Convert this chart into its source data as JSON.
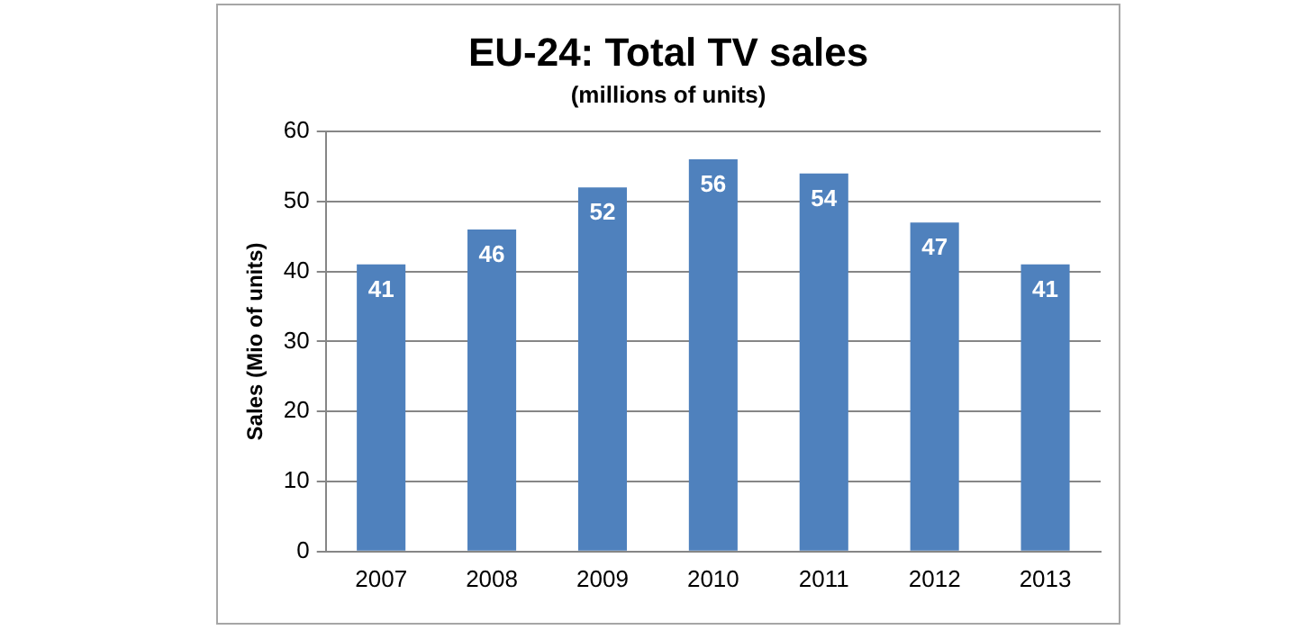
{
  "chart_data": {
    "type": "bar",
    "title": "EU-24: Total TV sales",
    "subtitle": "(millions of units)",
    "ylabel": "Sales (Mio of units)",
    "categories": [
      "2007",
      "2008",
      "2009",
      "2010",
      "2011",
      "2012",
      "2013"
    ],
    "values": [
      41,
      46,
      52,
      56,
      54,
      47,
      41
    ],
    "color": "#4f81bd",
    "ylim": [
      0,
      60
    ],
    "yticks": [
      0,
      10,
      20,
      30,
      40,
      50,
      60
    ],
    "grid": "y",
    "data_labels": true
  }
}
